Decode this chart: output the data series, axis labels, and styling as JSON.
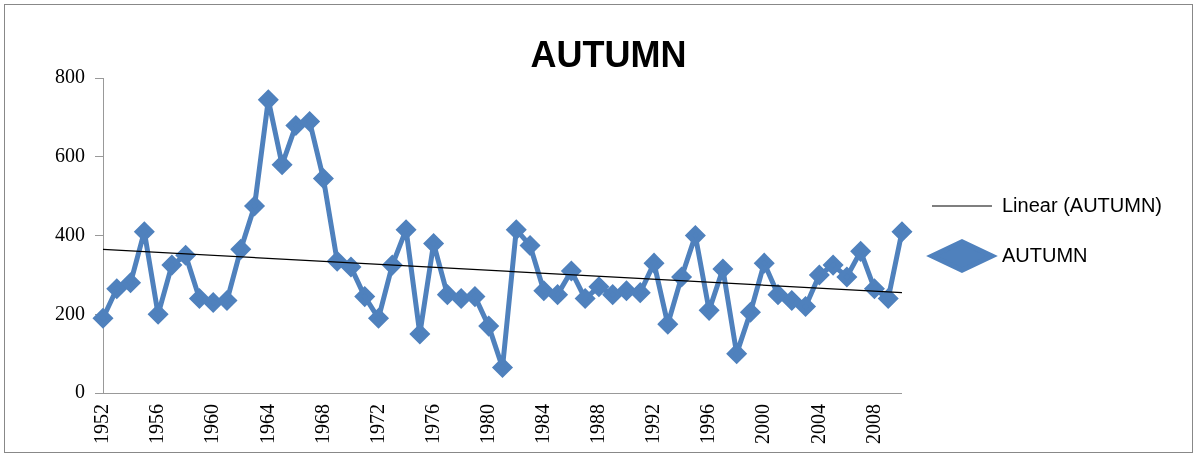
{
  "chart_data": {
    "type": "line",
    "title": "AUTUMN",
    "categories": [
      "1952",
      null,
      null,
      null,
      "1956",
      null,
      null,
      null,
      "1960",
      null,
      null,
      null,
      "1964",
      null,
      null,
      null,
      "1968",
      null,
      null,
      null,
      "1972",
      null,
      null,
      null,
      "1976",
      null,
      null,
      null,
      "1980",
      null,
      null,
      null,
      "1984",
      null,
      null,
      null,
      "1988",
      null,
      null,
      null,
      "1992",
      null,
      null,
      null,
      "1996",
      null,
      null,
      null,
      "2000",
      null,
      null,
      null,
      "2004",
      null,
      null,
      null,
      "2008",
      null,
      null
    ],
    "series": [
      {
        "name": "AUTUMN",
        "color": "#4f81bd",
        "marker": "diamond",
        "values": [
          190,
          265,
          280,
          410,
          200,
          325,
          350,
          240,
          230,
          235,
          365,
          475,
          745,
          580,
          680,
          690,
          545,
          335,
          320,
          245,
          190,
          325,
          415,
          150,
          380,
          250,
          240,
          245,
          170,
          65,
          415,
          375,
          260,
          250,
          310,
          240,
          270,
          250,
          260,
          255,
          330,
          175,
          295,
          400,
          210,
          315,
          100,
          205,
          330,
          250,
          235,
          220,
          300,
          325,
          295,
          360,
          265,
          240,
          410
        ]
      },
      {
        "name": "Linear (AUTUMN)",
        "color": "#000000",
        "type": "line",
        "marker": "none",
        "values": [
          365,
          null,
          null,
          null,
          null,
          null,
          null,
          null,
          null,
          null,
          null,
          null,
          null,
          null,
          null,
          null,
          null,
          null,
          null,
          null,
          null,
          null,
          null,
          null,
          null,
          null,
          null,
          null,
          null,
          null,
          null,
          null,
          null,
          null,
          null,
          null,
          null,
          null,
          null,
          null,
          null,
          null,
          null,
          null,
          null,
          null,
          null,
          null,
          null,
          null,
          null,
          null,
          null,
          null,
          null,
          null,
          null,
          null,
          255
        ]
      }
    ],
    "ylim": [
      0,
      800
    ],
    "yticks": [
      0,
      200,
      400,
      600,
      800
    ],
    "grid": false,
    "legend": "right"
  }
}
